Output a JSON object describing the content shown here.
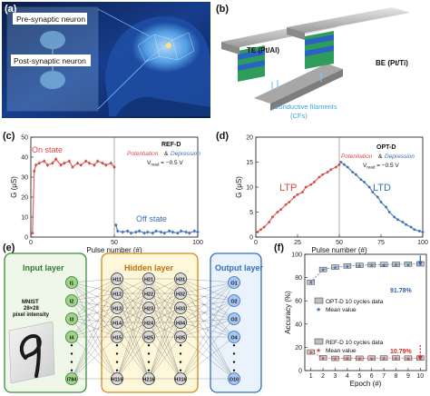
{
  "panel_a": {
    "letter": "(a)",
    "label_pre": "Pre-synaptic neuron",
    "label_post": "Post-synaptic neuron"
  },
  "panel_b": {
    "letter": "(b)",
    "label_te": "TE (Pt/Al)",
    "label_be": "BE (Pt/Ti)",
    "label_cf1": "Conductive filaments",
    "label_cf2": "(CFs)"
  },
  "panel_c": {
    "letter": "(c)",
    "on_state": "On state",
    "off_state": "Off state",
    "legend_title": "REF-D",
    "legend_pot": "Potentiation",
    "legend_amp": "&",
    "legend_dep": "Depression",
    "legend_vread": "V",
    "legend_vread_sub": "read",
    "legend_vread_val": " = −0.5 V"
  },
  "panel_d": {
    "letter": "(d)",
    "ltp": "LTP",
    "ltd": "LTD",
    "legend_title": "OPT-D",
    "legend_pot": "Potentiation",
    "legend_amp": "&",
    "legend_dep": "Depression",
    "legend_vread": "V",
    "legend_vread_sub": "read",
    "legend_vread_val": " = −0.5 V"
  },
  "panel_e": {
    "letter": "(e)",
    "input_title": "Input layer",
    "hidden_title": "Hidden layer",
    "output_title": "Output layer",
    "mnist_1": "MNIST",
    "mnist_2": "28×28",
    "mnist_3": "pixel intensity",
    "input_nodes": [
      "I1",
      "I2",
      "I3",
      "I4",
      "I784"
    ],
    "hidden1_nodes": [
      "H11",
      "H12",
      "H13",
      "H14",
      "H15",
      "H116"
    ],
    "hidden2_nodes": [
      "H21",
      "H22",
      "H23",
      "H24",
      "H25",
      "H216"
    ],
    "hidden3_nodes": [
      "H31",
      "H32",
      "H33",
      "H34",
      "H35",
      "H316"
    ],
    "output_nodes": [
      "O1",
      "O2",
      "O3",
      "O4",
      "O10"
    ]
  },
  "panel_f": {
    "letter": "(f)",
    "legend_opt": "OPT-D 10 cycles data",
    "legend_opt_mean": "Mean value",
    "legend_ref": "REF-D 10 cycles data",
    "legend_ref_mean": "Mean value",
    "annot_opt": "91.78%",
    "annot_ref": "10.79%"
  },
  "colors": {
    "red_series": "#d64a4a",
    "blue_series": "#3d6fb5",
    "green_layer": "#3e8e3e",
    "orange_layer": "#d08a1a",
    "blue_layer": "#2f6fc0"
  },
  "chart_data": [
    {
      "id": "c",
      "type": "line",
      "xlabel": "Pulse number (#)",
      "ylabel": "G (μS)",
      "xlim": [
        0,
        100
      ],
      "ylim": [
        0,
        50
      ],
      "xticks": [
        0,
        50,
        100
      ],
      "yticks": [
        0,
        10,
        20,
        30,
        40,
        50
      ],
      "series": [
        {
          "name": "Potentiation",
          "color": "#d64a4a",
          "x": [
            1,
            2,
            3,
            5,
            8,
            10,
            13,
            15,
            18,
            20,
            23,
            25,
            28,
            30,
            33,
            35,
            38,
            40,
            43,
            45,
            48,
            50
          ],
          "y": [
            2,
            33,
            36,
            37,
            38,
            36,
            37,
            39,
            36,
            37,
            38,
            35,
            37,
            36,
            38,
            37,
            36,
            38,
            37,
            36,
            37,
            35
          ]
        },
        {
          "name": "Depression",
          "color": "#3d6fb5",
          "x": [
            51,
            52,
            55,
            58,
            60,
            63,
            65,
            68,
            70,
            73,
            75,
            78,
            80,
            83,
            85,
            88,
            90,
            93,
            95,
            98,
            100
          ],
          "y": [
            6,
            3,
            2.5,
            3,
            2,
            2.5,
            3,
            2,
            2.5,
            2,
            3,
            2.5,
            2,
            3,
            2.5,
            2,
            3,
            2.5,
            2,
            3,
            2.5
          ]
        }
      ]
    },
    {
      "id": "d",
      "type": "line",
      "xlabel": "Pulse number (#)",
      "ylabel": "G (μS)",
      "xlim": [
        0,
        100
      ],
      "ylim": [
        0,
        20
      ],
      "xticks": [
        0,
        25,
        50,
        75,
        100
      ],
      "yticks": [
        0,
        5,
        10,
        15,
        20
      ],
      "series": [
        {
          "name": "Potentiation",
          "color": "#d64a4a",
          "x": [
            1,
            3,
            5,
            8,
            10,
            13,
            15,
            18,
            20,
            23,
            25,
            28,
            30,
            33,
            35,
            38,
            40,
            43,
            45,
            48,
            50
          ],
          "y": [
            1,
            1.5,
            2,
            3,
            4,
            5,
            5.5,
            6.5,
            7,
            8,
            8.5,
            9,
            10,
            10.5,
            11,
            12,
            12.5,
            13,
            13.5,
            14,
            14.5
          ]
        },
        {
          "name": "Depression",
          "color": "#3d6fb5",
          "x": [
            51,
            53,
            55,
            58,
            60,
            63,
            65,
            68,
            70,
            73,
            75,
            78,
            80,
            83,
            85,
            88,
            90,
            93,
            95,
            98,
            100
          ],
          "y": [
            15,
            14.5,
            14,
            13,
            12.5,
            11.5,
            11,
            10,
            9,
            8,
            7,
            6,
            5,
            4,
            3.5,
            3,
            2.5,
            2,
            1.5,
            1.2,
            1
          ]
        }
      ]
    },
    {
      "id": "f",
      "type": "scatter",
      "xlabel": "Epoch (#)",
      "ylabel": "Accuracy (%)",
      "xlim": [
        0.5,
        10.5
      ],
      "ylim": [
        0,
        100
      ],
      "xticks": [
        1,
        2,
        3,
        4,
        5,
        6,
        7,
        8,
        9,
        10
      ],
      "yticks": [
        0,
        20,
        40,
        60,
        80,
        100
      ],
      "series": [
        {
          "name": "OPT-D 10 cycles data",
          "color": "#555555",
          "x": [
            1,
            2,
            3,
            4,
            5,
            6,
            7,
            8,
            9,
            10
          ],
          "y": [
            76,
            87,
            89,
            90,
            90.5,
            91,
            91.2,
            91.4,
            91.6,
            91.78
          ]
        },
        {
          "name": "REF-D 10 cycles data",
          "color": "#d64a4a",
          "x": [
            1,
            2,
            3,
            4,
            5,
            6,
            7,
            8,
            9,
            10
          ],
          "y": [
            16,
            11,
            10.5,
            10.8,
            10.6,
            10.7,
            10.8,
            10.8,
            10.7,
            10.79
          ]
        }
      ]
    }
  ]
}
